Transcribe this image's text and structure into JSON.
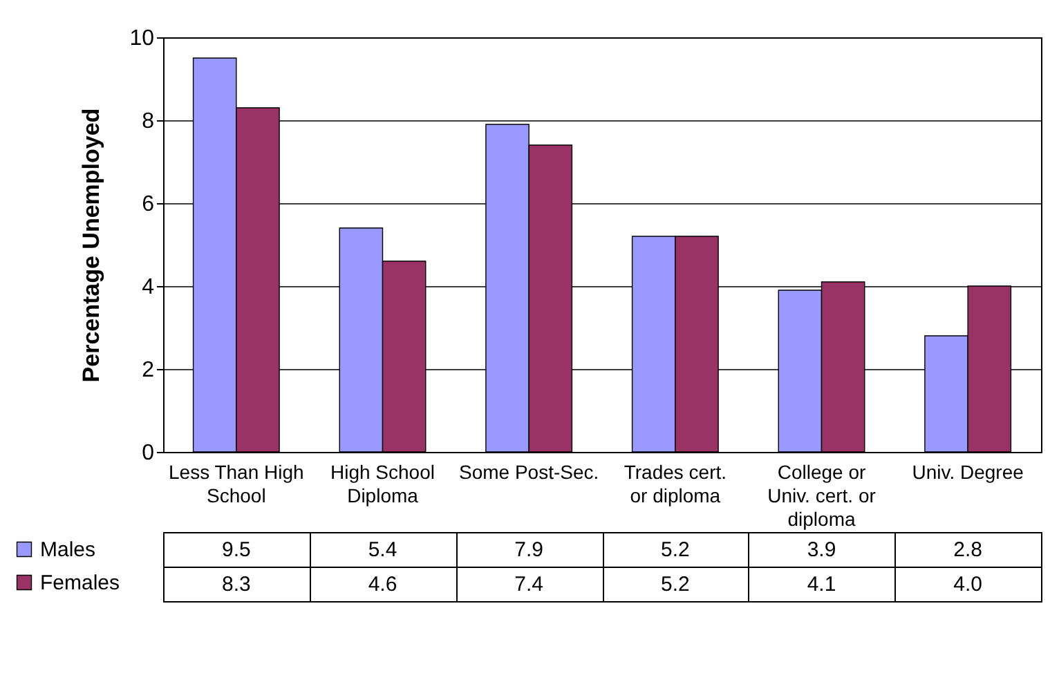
{
  "chart_data": {
    "type": "bar",
    "ylabel": "Percentage Unemployed",
    "categories": [
      "Less Than High School",
      "High School Diploma",
      "Some Post-Sec.",
      "Trades cert. or diploma",
      "College or Univ. cert. or diploma",
      "Univ. Degree"
    ],
    "series": [
      {
        "name": "Males",
        "color": "#9999ff",
        "values": [
          9.5,
          5.4,
          7.9,
          5.2,
          3.9,
          2.8
        ],
        "value_labels": [
          "9.5",
          "5.4",
          "7.9",
          "5.2",
          "3.9",
          "2.8"
        ]
      },
      {
        "name": "Females",
        "color": "#993366",
        "values": [
          8.3,
          4.6,
          7.4,
          5.2,
          4.1,
          4.0
        ],
        "value_labels": [
          "8.3",
          "4.6",
          "7.4",
          "5.2",
          "4.1",
          "4.0"
        ]
      }
    ],
    "ylim": [
      0,
      10
    ],
    "yticks": [
      0,
      2,
      4,
      6,
      8,
      10
    ],
    "grid": "y",
    "legend": "bottom left"
  }
}
